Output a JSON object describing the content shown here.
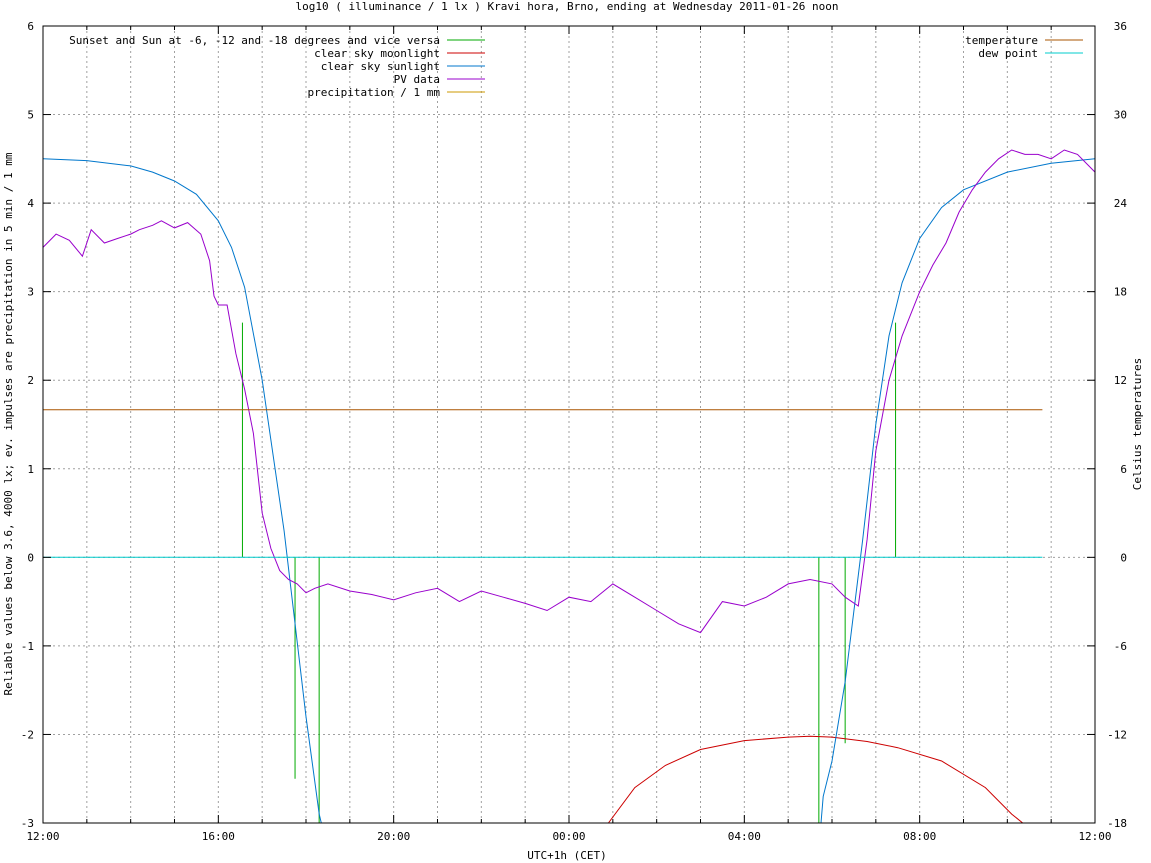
{
  "chart_data": {
    "type": "line",
    "title": "log10 ( illuminance / 1 lx ) Kravi hora, Brno, ending at Wednesday 2011-01-26 noon",
    "xlabel": "UTC+1h (CET)",
    "ylabel": "Reliable values below 3.6, 4000 lx; ev. impulses are precipitation in 5 min / 1 mm",
    "y2label": "Celsius temperatures",
    "xlim": [
      0,
      24
    ],
    "ylim": [
      -3,
      6
    ],
    "y2lim": [
      -18,
      36
    ],
    "xticks": [
      {
        "v": 0,
        "label": "12:00"
      },
      {
        "v": 4,
        "label": "16:00"
      },
      {
        "v": 8,
        "label": "20:00"
      },
      {
        "v": 12,
        "label": "00:00"
      },
      {
        "v": 16,
        "label": "04:00"
      },
      {
        "v": 20,
        "label": "08:00"
      },
      {
        "v": 24,
        "label": "12:00"
      }
    ],
    "yticks": [
      {
        "v": -3,
        "label": "-3"
      },
      {
        "v": -2,
        "label": "-2"
      },
      {
        "v": -1,
        "label": "-1"
      },
      {
        "v": 0,
        "label": "0"
      },
      {
        "v": 1,
        "label": "1"
      },
      {
        "v": 2,
        "label": "2"
      },
      {
        "v": 3,
        "label": "3"
      },
      {
        "v": 4,
        "label": "4"
      },
      {
        "v": 5,
        "label": "5"
      },
      {
        "v": 6,
        "label": "6"
      }
    ],
    "y2ticks": [
      {
        "v": -18,
        "label": "-18"
      },
      {
        "v": -12,
        "label": "-12"
      },
      {
        "v": -6,
        "label": "-6"
      },
      {
        "v": 0,
        "label": "0"
      },
      {
        "v": 6,
        "label": "6"
      },
      {
        "v": 12,
        "label": "12"
      },
      {
        "v": 18,
        "label": "18"
      },
      {
        "v": 24,
        "label": "24"
      },
      {
        "v": 30,
        "label": "30"
      },
      {
        "v": 36,
        "label": "36"
      }
    ],
    "grid": true,
    "legend_left": [
      {
        "name": "Sunset and Sun at -6, -12 and -18 degrees and vice versa",
        "color": "#00aa00"
      },
      {
        "name": "clear sky moonlight",
        "color": "#cc0000"
      },
      {
        "name": "clear sky sunlight",
        "color": "#0077cc"
      },
      {
        "name": "PV data",
        "color": "#9900cc"
      },
      {
        "name": "precipitation / 1 mm",
        "color": "#cc9900"
      }
    ],
    "legend_right": [
      {
        "name": "temperature",
        "color": "#aa5500"
      },
      {
        "name": "dew point",
        "color": "#00cccc"
      }
    ],
    "series": [
      {
        "name": "Sunset and Sun at -6, -12 and -18 degrees and vice versa",
        "kind": "impulses",
        "color": "#00aa00",
        "impulses": [
          {
            "x": 4.55,
            "y": 2.65
          },
          {
            "x": 5.75,
            "y": -2.5
          },
          {
            "x": 6.3,
            "y": -3
          },
          {
            "x": 17.7,
            "y": -3
          },
          {
            "x": 18.3,
            "y": -2.1
          },
          {
            "x": 19.45,
            "y": 2.65
          }
        ]
      },
      {
        "name": "clear sky moonlight",
        "kind": "line",
        "color": "#cc0000",
        "x": [
          12.9,
          13.5,
          14.2,
          15.0,
          16.0,
          17.0,
          17.5,
          18.0,
          18.8,
          19.5,
          20.5,
          21.5,
          22.1,
          22.35
        ],
        "y": [
          -3.0,
          -2.6,
          -2.35,
          -2.17,
          -2.07,
          -2.03,
          -2.02,
          -2.03,
          -2.08,
          -2.15,
          -2.3,
          -2.6,
          -2.9,
          -3.0
        ]
      },
      {
        "name": "clear sky sunlight",
        "kind": "line",
        "color": "#0077cc",
        "x": [
          0,
          1.0,
          2.0,
          2.5,
          3.0,
          3.5,
          4.0,
          4.3,
          4.6,
          5.0,
          5.5,
          6.0,
          6.3,
          6.35,
          17.75,
          17.8,
          18.0,
          18.3,
          18.7,
          19.0,
          19.3,
          19.6,
          20.0,
          20.5,
          21.0,
          22.0,
          23.0,
          24.0
        ],
        "y": [
          4.5,
          4.48,
          4.42,
          4.35,
          4.25,
          4.1,
          3.8,
          3.5,
          3.05,
          2.0,
          0.3,
          -1.8,
          -2.9,
          -3.0,
          -3.0,
          -2.7,
          -2.3,
          -1.4,
          0.2,
          1.5,
          2.5,
          3.1,
          3.6,
          3.95,
          4.15,
          4.35,
          4.45,
          4.5
        ]
      },
      {
        "name": "PV data",
        "kind": "line",
        "color": "#9900cc",
        "x": [
          0,
          0.3,
          0.6,
          0.9,
          1.1,
          1.4,
          1.7,
          2.0,
          2.2,
          2.5,
          2.7,
          3.0,
          3.3,
          3.6,
          3.8,
          3.9,
          4.0,
          4.2,
          4.4,
          4.6,
          4.8,
          5.0,
          5.2,
          5.4,
          5.6,
          5.8,
          6.0,
          6.2,
          6.5,
          7.0,
          7.5,
          8.0,
          8.5,
          9.0,
          9.5,
          10.0,
          10.5,
          11.0,
          11.5,
          12.0,
          12.5,
          13.0,
          13.5,
          14.0,
          14.5,
          15.0,
          15.5,
          16.0,
          16.5,
          17.0,
          17.5,
          18.0,
          18.3,
          18.6,
          18.8,
          19.0,
          19.3,
          19.6,
          20.0,
          20.3,
          20.6,
          20.9,
          21.2,
          21.5,
          21.8,
          22.1,
          22.4,
          22.7,
          23.0,
          23.3,
          23.6,
          24.0
        ],
        "y": [
          3.5,
          3.65,
          3.58,
          3.4,
          3.7,
          3.55,
          3.6,
          3.65,
          3.7,
          3.75,
          3.8,
          3.72,
          3.78,
          3.65,
          3.35,
          2.95,
          2.85,
          2.85,
          2.3,
          1.9,
          1.4,
          0.5,
          0.1,
          -0.15,
          -0.25,
          -0.3,
          -0.4,
          -0.35,
          -0.3,
          -0.38,
          -0.42,
          -0.48,
          -0.4,
          -0.35,
          -0.5,
          -0.38,
          -0.45,
          -0.52,
          -0.6,
          -0.45,
          -0.5,
          -0.3,
          -0.45,
          -0.6,
          -0.75,
          -0.85,
          -0.5,
          -0.55,
          -0.45,
          -0.3,
          -0.25,
          -0.3,
          -0.45,
          -0.55,
          0.2,
          1.2,
          2.0,
          2.5,
          3.0,
          3.3,
          3.55,
          3.9,
          4.15,
          4.35,
          4.5,
          4.6,
          4.55,
          4.55,
          4.5,
          4.6,
          4.55,
          4.35
        ]
      },
      {
        "name": "temperature",
        "kind": "line",
        "axis": "y2",
        "color": "#aa5500",
        "x": [
          0,
          22.8
        ],
        "y": [
          10,
          10
        ]
      },
      {
        "name": "dew point",
        "kind": "line",
        "axis": "y2",
        "color": "#00cccc",
        "x": [
          0,
          22.8
        ],
        "y": [
          0,
          0
        ]
      }
    ]
  }
}
